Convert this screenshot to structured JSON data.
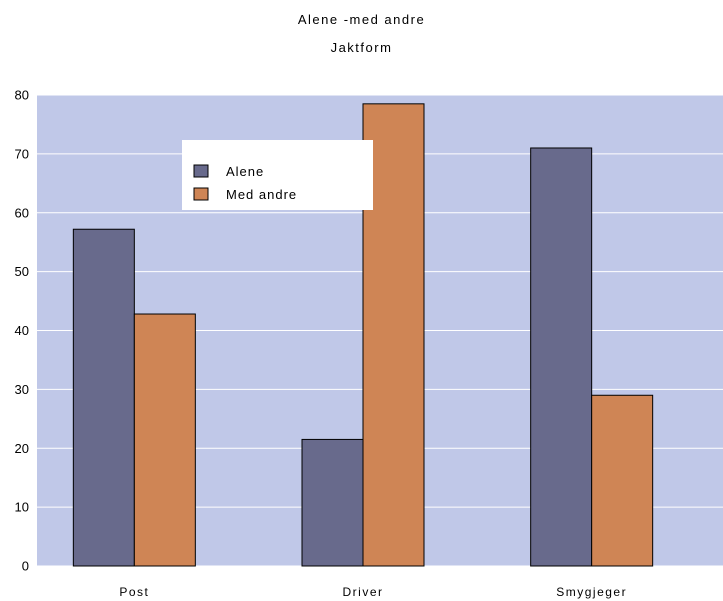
{
  "chart_data": {
    "type": "bar",
    "title": "Alene -med andre",
    "subtitle": "Jaktform",
    "categories": [
      "Post",
      "Driver",
      "Smygjeger"
    ],
    "series": [
      {
        "name": "Alene",
        "values": [
          57.2,
          21.5,
          71.0
        ],
        "color": "#686a8c"
      },
      {
        "name": "Med andre",
        "values": [
          42.8,
          78.5,
          29.0
        ],
        "color": "#cf8555"
      }
    ],
    "ylim": [
      0,
      80
    ],
    "yticks": [
      0,
      10,
      20,
      30,
      40,
      50,
      60,
      70,
      80
    ],
    "grid": true,
    "legend_position": "top-left",
    "plot_background": "#c0c8e8"
  }
}
